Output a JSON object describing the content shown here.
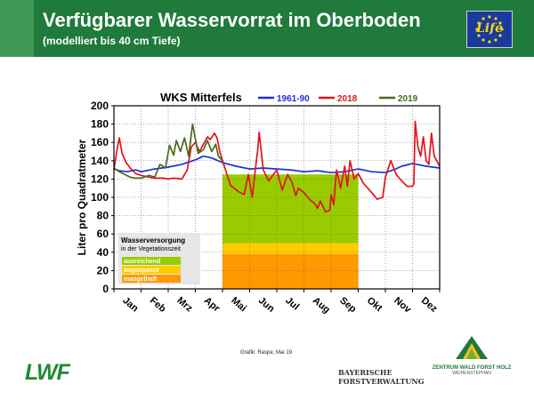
{
  "header": {
    "title": "Verfügbarer Wasservorrat im Oberboden",
    "subtitle": "(modelliert bis 40 cm Tiefe)",
    "eu_logo_text": "Life"
  },
  "chart_data": {
    "type": "line",
    "title": "WKS Mitterfels",
    "ylabel": "Liter pro Quadratmeter",
    "xlabel": "",
    "ylim": [
      0,
      200
    ],
    "yticks": [
      0,
      20,
      40,
      60,
      80,
      100,
      120,
      140,
      160,
      180,
      200
    ],
    "xlim": [
      0,
      12
    ],
    "months": [
      "Jan",
      "Feb",
      "Mrz",
      "Apr",
      "Mai",
      "Jun",
      "Jul",
      "Aug",
      "Sep",
      "Okt",
      "Nov",
      "Dez"
    ],
    "grid": true,
    "legend_position": "top",
    "series": [
      {
        "name": "1961-90",
        "color": "#1d2fd6",
        "x": [
          0,
          0.2,
          0.5,
          0.8,
          1.0,
          1.5,
          2.0,
          2.5,
          3.0,
          3.3,
          3.6,
          4.0,
          4.5,
          5.0,
          5.5,
          6.0,
          6.5,
          7.0,
          7.5,
          8.0,
          8.5,
          9.0,
          9.5,
          10.0,
          10.3,
          10.6,
          11.0,
          11.5,
          12.0
        ],
        "y": [
          131,
          129,
          128,
          130,
          128,
          131,
          133,
          136,
          141,
          145,
          143,
          138,
          134,
          131,
          132,
          131,
          130,
          128,
          129,
          127,
          128,
          131,
          128,
          127,
          130,
          134,
          137,
          134,
          132
        ]
      },
      {
        "name": "2018",
        "color": "#e0141b",
        "x": [
          0,
          0.1,
          0.2,
          0.3,
          0.45,
          0.6,
          0.8,
          1.0,
          1.3,
          1.5,
          1.8,
          2.0,
          2.2,
          2.5,
          2.7,
          2.85,
          3.0,
          3.15,
          3.3,
          3.45,
          3.55,
          3.7,
          3.8,
          3.9,
          4.0,
          4.3,
          4.6,
          4.8,
          4.95,
          5.1,
          5.2,
          5.3,
          5.35,
          5.5,
          5.7,
          6.0,
          6.2,
          6.4,
          6.55,
          6.7,
          6.8,
          7.0,
          7.2,
          7.4,
          7.5,
          7.6,
          7.8,
          7.95,
          8.0,
          8.1,
          8.2,
          8.35,
          8.5,
          8.6,
          8.7,
          8.85,
          9.0,
          9.2,
          9.5,
          9.7,
          9.8,
          9.9,
          10.0,
          10.2,
          10.4,
          10.6,
          10.8,
          11.0,
          11.05,
          11.1,
          11.2,
          11.3,
          11.4,
          11.5,
          11.6,
          11.7,
          11.8,
          12.0
        ],
        "y": [
          130,
          150,
          165,
          148,
          138,
          132,
          126,
          124,
          122,
          121,
          121,
          120,
          121,
          120,
          130,
          155,
          160,
          150,
          158,
          166,
          163,
          170,
          165,
          150,
          140,
          113,
          106,
          103,
          125,
          100,
          128,
          152,
          171,
          130,
          118,
          130,
          108,
          125,
          117,
          102,
          110,
          105,
          98,
          93,
          88,
          96,
          84,
          86,
          103,
          92,
          130,
          110,
          134,
          112,
          140,
          120,
          126,
          115,
          105,
          98,
          99,
          100,
          122,
          140,
          125,
          118,
          112,
          112,
          115,
          183,
          155,
          145,
          166,
          140,
          136,
          170,
          145,
          134
        ]
      },
      {
        "name": "2019",
        "color": "#4a6a1e",
        "x": [
          0,
          0.2,
          0.4,
          0.6,
          0.8,
          1.0,
          1.3,
          1.5,
          1.7,
          1.9,
          2.05,
          2.2,
          2.3,
          2.45,
          2.6,
          2.75,
          2.9,
          3.1,
          3.3,
          3.45,
          3.6,
          3.75,
          3.85,
          4.0
        ],
        "y": [
          132,
          128,
          125,
          122,
          121,
          121,
          124,
          122,
          136,
          132,
          157,
          146,
          162,
          150,
          165,
          145,
          180,
          148,
          152,
          162,
          150,
          158,
          145,
          140
        ]
      }
    ],
    "panel": {
      "title": "Wasserversorgung",
      "subtitle": "in der Vegetationszeit",
      "x_range": [
        4.0,
        9.0
      ],
      "bands": [
        {
          "label": "ausreichend",
          "color": "#99cc00",
          "from": 50,
          "to": 125
        },
        {
          "label": "angespannt",
          "color": "#ffcc00",
          "from": 38,
          "to": 50
        },
        {
          "label": "mangelhaft",
          "color": "#ff9900",
          "from": 0,
          "to": 38
        }
      ]
    }
  },
  "footer": {
    "credit": "Grafik: Raspe, Mai 19",
    "lwf_logo": "LWF",
    "bfv_line1": "BAYERISCHE",
    "bfv_line2": "FORSTVERWALTUNG",
    "zwfh_name": "ZENTRUM WALD FORST HOLZ",
    "zwfh_sub": "WEIHENSTEPHAN"
  }
}
